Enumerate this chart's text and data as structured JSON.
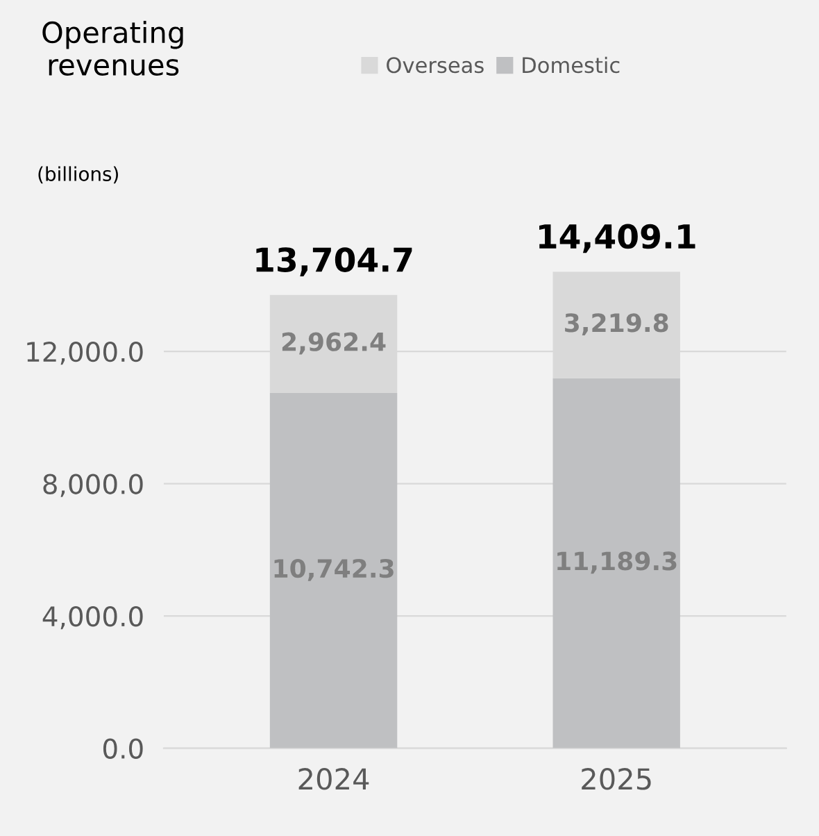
{
  "chart_data": {
    "type": "bar",
    "title": "Operating\nrevenues",
    "ylabel": "(billions)",
    "categories": [
      "2024",
      "2025"
    ],
    "stacked": true,
    "series": [
      {
        "name": "Domestic",
        "color": "#bfc0c2",
        "values": [
          10742.3,
          11189.3
        ]
      },
      {
        "name": "Overseas",
        "color": "#d9d9d9",
        "values": [
          2962.4,
          3219.8
        ]
      }
    ],
    "value_labels": [
      [
        "10,742.3",
        "11,189.3"
      ],
      [
        "2,962.4",
        "3,219.8"
      ]
    ],
    "totals": [
      "13,704.7",
      "14,409.1"
    ],
    "ylim": [
      0,
      14409.1
    ],
    "yticks": [
      {
        "value": 0,
        "label": "0.0"
      },
      {
        "value": 4000,
        "label": "4,000.0"
      },
      {
        "value": 8000,
        "label": "8,000.0"
      },
      {
        "value": 12000,
        "label": "12,000.0"
      }
    ],
    "grid": "y",
    "legend": "top"
  }
}
